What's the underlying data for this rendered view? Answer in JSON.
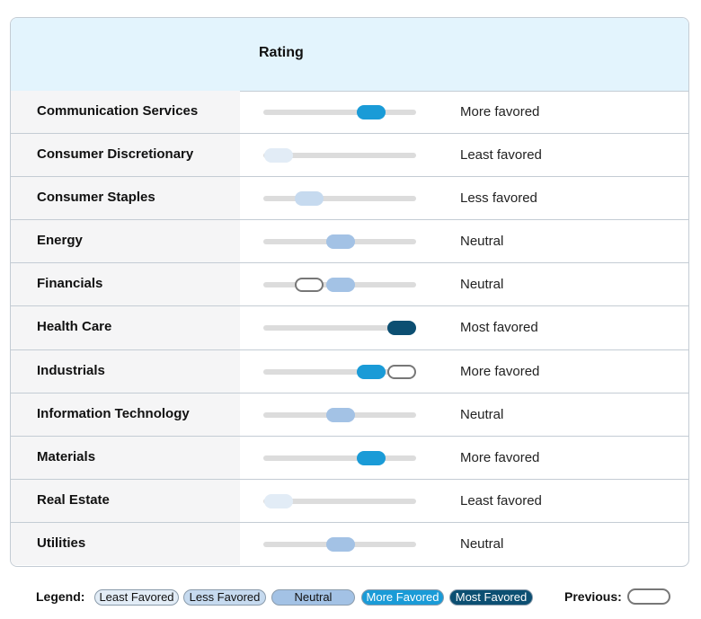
{
  "header": {
    "title": "Rating"
  },
  "rows": [
    {
      "sector": "Communication Services",
      "rating": "More favored"
    },
    {
      "sector": "Consumer Discretionary",
      "rating": "Least favored"
    },
    {
      "sector": "Consumer Staples",
      "rating": "Less favored"
    },
    {
      "sector": "Energy",
      "rating": "Neutral"
    },
    {
      "sector": "Financials",
      "rating": "Neutral",
      "previous": "Less favored"
    },
    {
      "sector": "Health Care",
      "rating": "Most favored"
    },
    {
      "sector": "Industrials",
      "rating": "More favored",
      "previous": "Most favored"
    },
    {
      "sector": "Information Technology",
      "rating": "Neutral"
    },
    {
      "sector": "Materials",
      "rating": "More favored"
    },
    {
      "sector": "Real Estate",
      "rating": "Least favored"
    },
    {
      "sector": "Utilities",
      "rating": "Neutral"
    }
  ],
  "legend": {
    "title": "Legend:",
    "items": [
      {
        "label": "Least Favored",
        "color": "#e2ecf6"
      },
      {
        "label": "Less Favored",
        "color": "#c6daef"
      },
      {
        "label": "Neutral",
        "color": "#a3c2e5"
      },
      {
        "label": "More Favored",
        "color": "#1a9bd7"
      },
      {
        "label": "Most Favored",
        "color": "#0c4f72"
      }
    ],
    "previous_label": "Previous:"
  }
}
